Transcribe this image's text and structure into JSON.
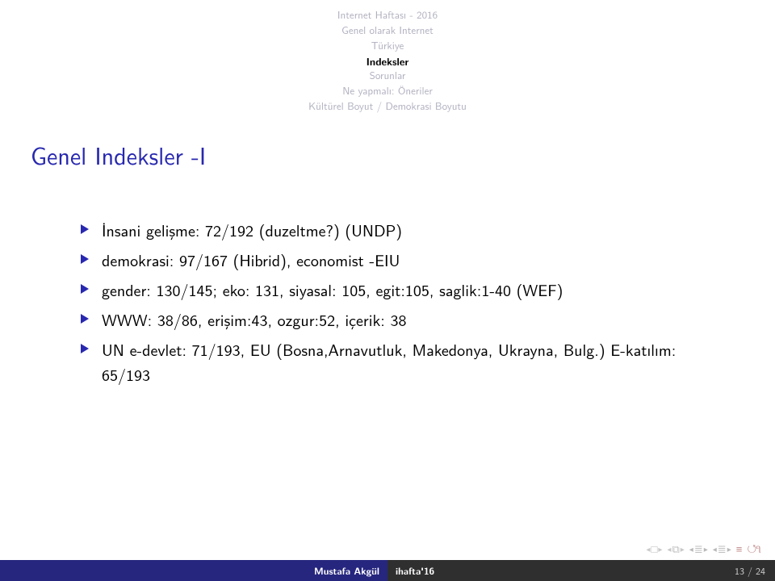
{
  "header": {
    "lines": [
      "Internet Haftası - 2016",
      "Genel olarak Internet",
      "Türkiye",
      "Indeksler",
      "Sorunlar",
      "Ne yapmalı: Öneriler",
      "Kültürel Boyut / Demokrasi Boyutu"
    ],
    "active_index": 3,
    "color_inactive": "#b0b0c0",
    "color_active": "#000000"
  },
  "title": {
    "text": "Genel Indeksler -I",
    "color": "#2828b0",
    "fontsize": 30
  },
  "bullets": [
    "İnsani gelişme: 72/192 (duzeltme?) (UNDP)",
    "demokrasi: 97/167 (Hibrid), economist -EIU",
    "gender: 130/145; eko: 131, siyasal: 105, egit:105, saglik:1-40 (WEF)",
    "WWW: 38/86, erişim:43, ozgur:52, içerik: 38",
    "UN e-devlet: 71/193, EU (Bosna,Arnavutluk, Makedonya, Ukrayna, Bulg.) E-katılım: 65/193"
  ],
  "bullet_marker_color": "#2828b0",
  "footer": {
    "author": "Mustafa Akgül",
    "short_title": "ihafta'16",
    "page": "13 / 24",
    "left_bg": "#26267f",
    "right_bg": "#2f2f2f"
  }
}
